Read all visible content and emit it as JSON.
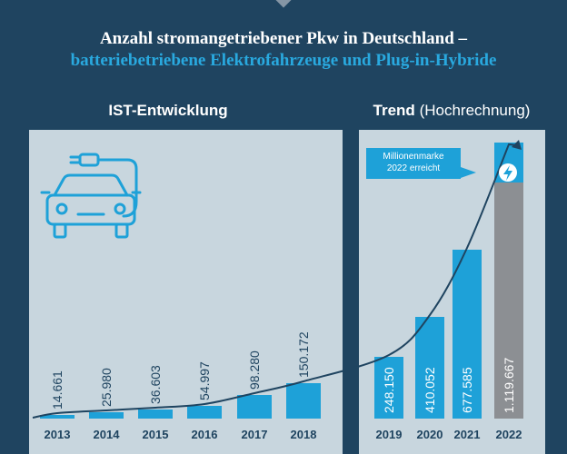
{
  "title_line1": "Anzahl stromangetriebener Pkw in Deutschland –",
  "title_line2": "batteriebetriebene Elektrofahrzeuge und Plug-in-Hybride",
  "section_ist": "IST-Entwicklung",
  "section_trend": "Trend",
  "section_trend_note": "(Hochrechnung)",
  "callout_line1": "Millionenmarke",
  "callout_line2": "2022 erreicht",
  "icons": [
    "car-plug-icon",
    "lightning-icon"
  ],
  "colors": {
    "background": "#1f4460",
    "panel": "#c8d6de",
    "bar_actual": "#1ea1d8",
    "bar_forecast": "#1ea1d8",
    "bar_2022": "#8c8f93",
    "subtitle": "#29a9df",
    "year_label": "#1f4460"
  },
  "chart_data": {
    "type": "bar",
    "title": "Anzahl stromangetriebener Pkw in Deutschland – batteriebetriebene Elektrofahrzeuge und Plug-in-Hybride",
    "categories": [
      "2013",
      "2014",
      "2015",
      "2016",
      "2017",
      "2018",
      "2019",
      "2020",
      "2021",
      "2022"
    ],
    "values": [
      14661,
      25980,
      36603,
      54997,
      98280,
      150172,
      248150,
      410052,
      677585,
      1119667
    ],
    "value_labels": [
      "14.661",
      "25.980",
      "36.603",
      "54.997",
      "98.280",
      "150.172",
      "248.150",
      "410.052",
      "677.585",
      "1.119.667"
    ],
    "groups": [
      {
        "label": "IST-Entwicklung",
        "categories": [
          "2013",
          "2014",
          "2015",
          "2016",
          "2017",
          "2018"
        ]
      },
      {
        "label": "Trend (Hochrechnung)",
        "categories": [
          "2019",
          "2020",
          "2021",
          "2022"
        ]
      }
    ],
    "ylim": [
      0,
      1200000
    ],
    "grid": false,
    "trend_curve": true
  }
}
